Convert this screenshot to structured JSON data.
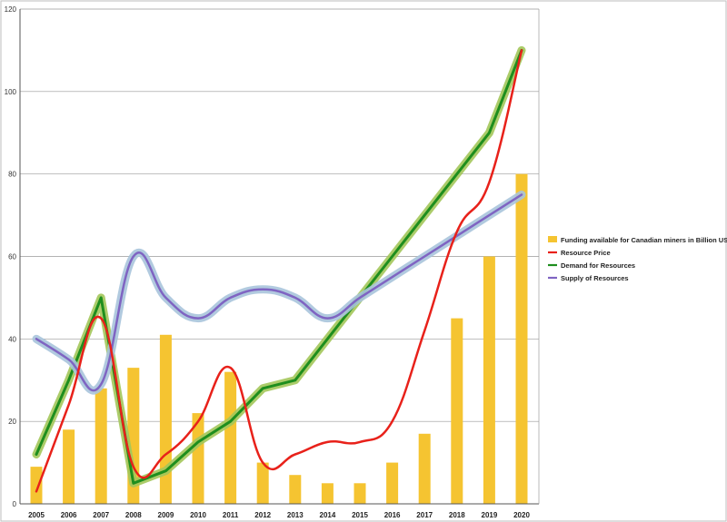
{
  "chart_data": {
    "type": "bar",
    "categories": [
      "2005",
      "2006",
      "2007",
      "2008",
      "2009",
      "2010",
      "2011",
      "2012",
      "2013",
      "2014",
      "2015",
      "2016",
      "2017",
      "2018",
      "2019",
      "2020"
    ],
    "ylim": [
      0,
      120
    ],
    "yticks": [
      "0",
      "20",
      "40",
      "60",
      "80",
      "100",
      "120"
    ],
    "grid": true,
    "legend_position": "right",
    "series": [
      {
        "name": "Funding available for Canadian miners in Billion USD",
        "type": "bar",
        "color": "#F5C431",
        "values": [
          9,
          18,
          28,
          33,
          41,
          22,
          32,
          10,
          7,
          5,
          5,
          10,
          17,
          45,
          60,
          80
        ]
      },
      {
        "name": "Resource Price",
        "type": "line",
        "color": "#E8211A",
        "values": [
          3,
          24,
          45,
          9,
          12,
          20,
          33,
          10,
          12,
          15,
          15,
          20,
          42,
          66,
          78,
          110
        ]
      },
      {
        "name": "Demand for Resources",
        "type": "line",
        "color": "#1E8E1E",
        "glow": "#A3C75A",
        "values": [
          12,
          30,
          50,
          5,
          8,
          15,
          20,
          28,
          30,
          40,
          50,
          60,
          70,
          80,
          90,
          110
        ]
      },
      {
        "name": "Supply of Resources",
        "type": "line",
        "color": "#7F64C2",
        "glow": "#A9C4DC",
        "values": [
          40,
          35,
          29,
          60,
          50,
          45,
          50,
          52,
          50,
          45,
          50,
          55,
          60,
          65,
          70,
          75
        ]
      }
    ]
  }
}
